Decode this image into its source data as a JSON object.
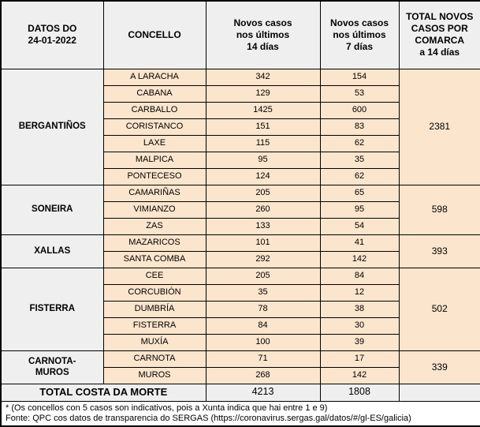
{
  "colors": {
    "gray-bg": "#efefef",
    "peach-bg": "#fce5cd",
    "border-color": "#000000",
    "text-color": "#000000",
    "page-bg": "#ffffff"
  },
  "header": {
    "date_cell": "DATOS DO\n24-01-2022",
    "concello": "CONCELLO",
    "cases_14d": "Novos casos\nnos últimos\n14 días",
    "cases_7d": "Novos casos\nnos últimos\n7 días",
    "total_comarca": "TOTAL NOVOS\nCASOS POR\nCOMARCA\na 14 días"
  },
  "groups": [
    {
      "comarca": "BERGANTIÑOS",
      "total": "2381",
      "rows": [
        {
          "concello": "A LARACHA",
          "c14": "342",
          "c7": "154"
        },
        {
          "concello": "CABANA",
          "c14": "129",
          "c7": "53"
        },
        {
          "concello": "CARBALLO",
          "c14": "1425",
          "c7": "600"
        },
        {
          "concello": "CORISTANCO",
          "c14": "151",
          "c7": "83"
        },
        {
          "concello": "LAXE",
          "c14": "115",
          "c7": "62"
        },
        {
          "concello": "MALPICA",
          "c14": "95",
          "c7": "35"
        },
        {
          "concello": "PONTECESO",
          "c14": "124",
          "c7": "62"
        }
      ]
    },
    {
      "comarca": "SONEIRA",
      "total": "598",
      "rows": [
        {
          "concello": "CAMARIÑAS",
          "c14": "205",
          "c7": "65"
        },
        {
          "concello": "VIMIANZO",
          "c14": "260",
          "c7": "95"
        },
        {
          "concello": "ZAS",
          "c14": "133",
          "c7": "54"
        }
      ]
    },
    {
      "comarca": "XALLAS",
      "total": "393",
      "rows": [
        {
          "concello": "MAZARICOS",
          "c14": "101",
          "c7": "41"
        },
        {
          "concello": "SANTA COMBA",
          "c14": "292",
          "c7": "142"
        }
      ]
    },
    {
      "comarca": "FISTERRA",
      "total": "502",
      "rows": [
        {
          "concello": "CEE",
          "c14": "205",
          "c7": "84"
        },
        {
          "concello": "CORCUBIÓN",
          "c14": "35",
          "c7": "12"
        },
        {
          "concello": "DUMBRÍA",
          "c14": "78",
          "c7": "38"
        },
        {
          "concello": "FISTERRA",
          "c14": "84",
          "c7": "30"
        },
        {
          "concello": "MUXÍA",
          "c14": "100",
          "c7": "39"
        }
      ]
    },
    {
      "comarca": "CARNOTA-\nMUROS",
      "total": "339",
      "rows": [
        {
          "concello": "CARNOTA",
          "c14": "71",
          "c7": "17"
        },
        {
          "concello": "MUROS",
          "c14": "268",
          "c7": "142"
        }
      ]
    }
  ],
  "total_row": {
    "label": "TOTAL COSTA DA MORTE",
    "c14": "4213",
    "c7": "1808",
    "comarca_total": ""
  },
  "footer": {
    "line1": "* (Os concellos con 5 casos son indicativos, pois a Xunta indica que hai entre 1 e 9)",
    "line2": "Fonte: QPC cos datos de transparencia do SERGAS (https://coronavirus.sergas.gal/datos/#/gl-ES/galicia)"
  }
}
